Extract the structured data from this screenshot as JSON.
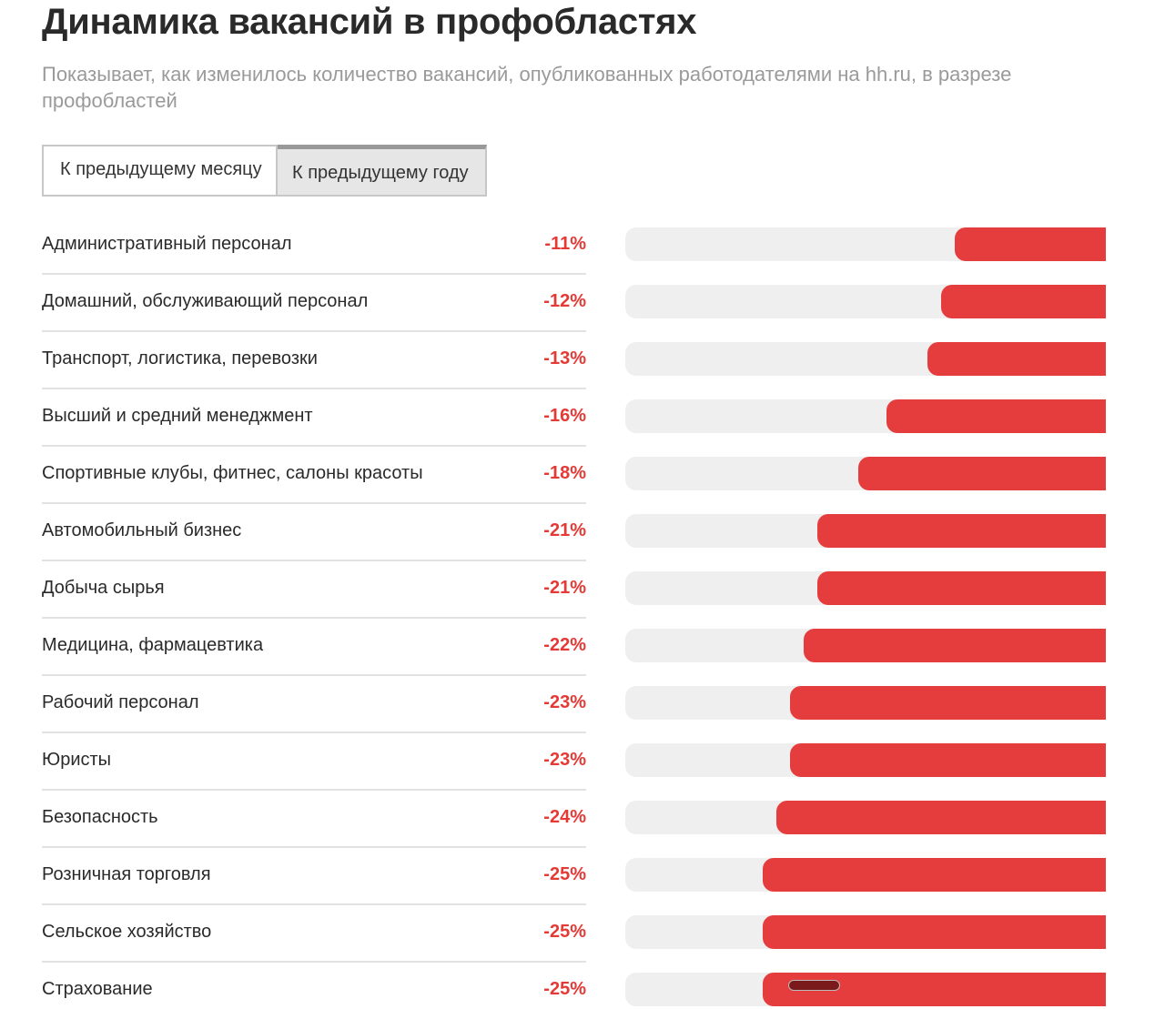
{
  "header": {
    "title": "Динамика вакансий в профобластях",
    "subtitle": "Показывает, как изменилось количество вакансий, опубликованных работодателями на hh.ru, в разрезе профобластей"
  },
  "tabs": {
    "month_label": "К предыдущему месяцу",
    "year_label": "К предыдущему году",
    "active": "year"
  },
  "colors": {
    "negative": "#e53d3d",
    "track": "#efeff0"
  },
  "chart_data": {
    "type": "bar",
    "orientation": "horizontal",
    "categories": [
      "Административный персонал",
      "Домашний, обслуживающий персонал",
      "Транспорт, логистика, перевозки",
      "Высший и средний менеджмент",
      "Спортивные клубы, фитнес, салоны красоты",
      "Автомобильный бизнес",
      "Добыча сырья",
      "Медицина, фармацевтика",
      "Рабочий персонал",
      "Юристы",
      "Безопасность",
      "Розничная торговля",
      "Сельское хозяйство",
      "Страхование"
    ],
    "values": [
      -11,
      -12,
      -13,
      -16,
      -18,
      -21,
      -21,
      -22,
      -23,
      -23,
      -24,
      -25,
      -25,
      -25
    ],
    "value_labels": [
      "-11%",
      "-12%",
      "-13%",
      "-16%",
      "-18%",
      "-21%",
      "-21%",
      "-22%",
      "-23%",
      "-23%",
      "-24%",
      "-25%",
      "-25%",
      "-25%"
    ],
    "xlim": [
      -35,
      0
    ],
    "grid": false,
    "title": "",
    "xlabel": "",
    "ylabel": ""
  }
}
